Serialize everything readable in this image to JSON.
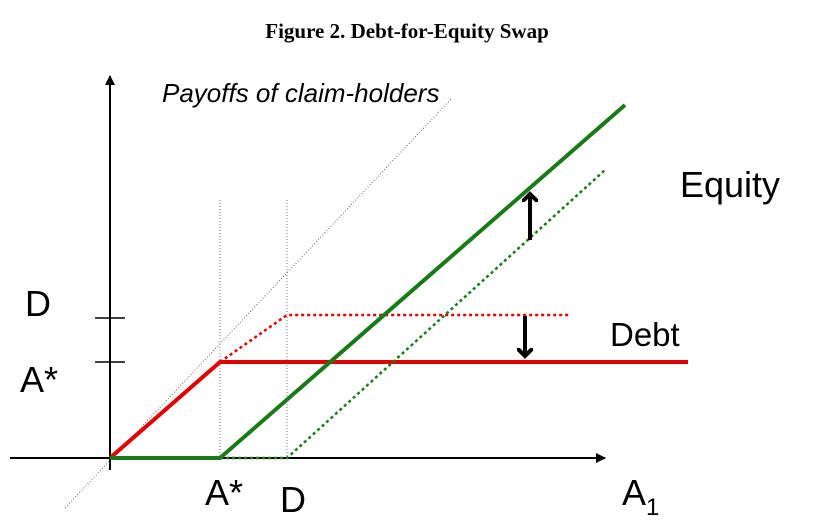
{
  "title": "Figure 2. Debt-for-Equity Swap",
  "y_axis_label": "Payoffs of claim-holders",
  "x_axis_label": {
    "main": "A",
    "subscript": "1"
  },
  "y_ticks": [
    "D",
    "A*"
  ],
  "x_ticks": [
    "A*",
    "D"
  ],
  "curve_labels": {
    "equity": "Equity",
    "debt": "Debt"
  }
}
